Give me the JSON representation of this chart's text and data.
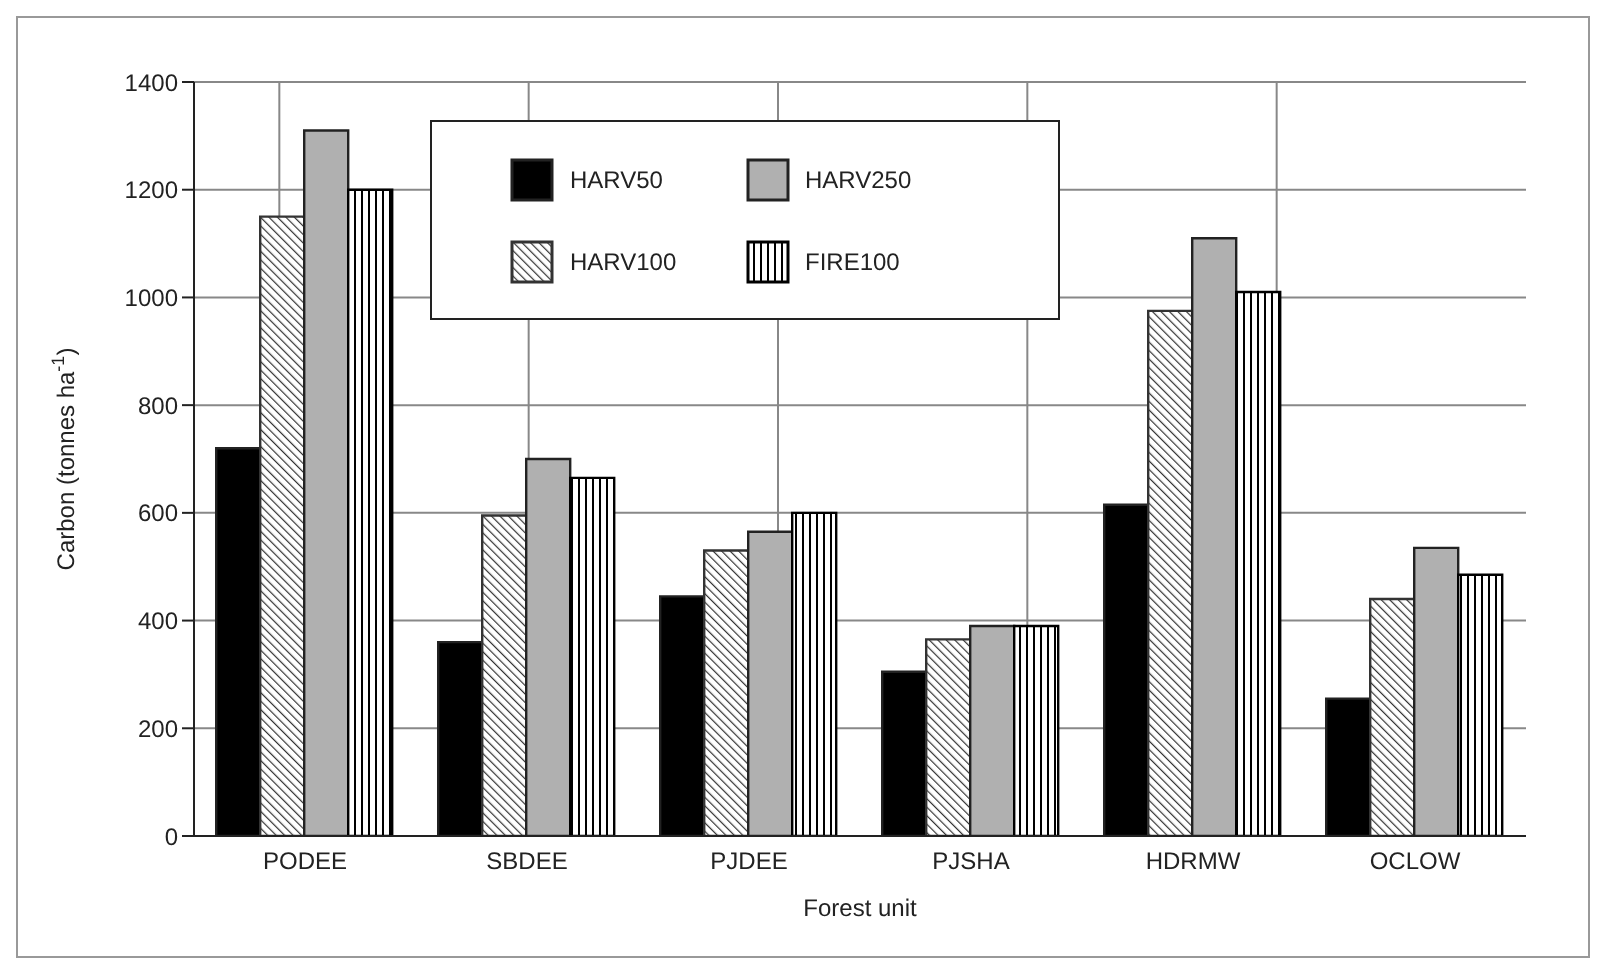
{
  "chart_data": {
    "type": "bar",
    "xlabel": "Forest unit",
    "ylabel": "Carbon (tonnes ha$^{-1}$)",
    "categories": [
      "PODEE",
      "SBDEE",
      "PJDEE",
      "PJSHA",
      "HDRMW",
      "OCLOW"
    ],
    "series": [
      {
        "name": "HARV50",
        "color": "#000000",
        "values": [
          720,
          360,
          445,
          305,
          615,
          255
        ]
      },
      {
        "name": "HARV100",
        "color": "#333333",
        "values": [
          1150,
          595,
          530,
          365,
          975,
          440
        ]
      },
      {
        "name": "HARV250",
        "color": "#b0b0b0",
        "values": [
          1310,
          700,
          565,
          390,
          1110,
          535
        ]
      },
      {
        "name": "FIRE100",
        "color": "#000000",
        "values": [
          1200,
          665,
          600,
          390,
          1010,
          485
        ]
      }
    ],
    "ylim": [
      0,
      1400
    ],
    "yticks": [
      0,
      200,
      400,
      600,
      800,
      1000,
      1200,
      1400
    ],
    "grid": true,
    "legend": "top"
  }
}
